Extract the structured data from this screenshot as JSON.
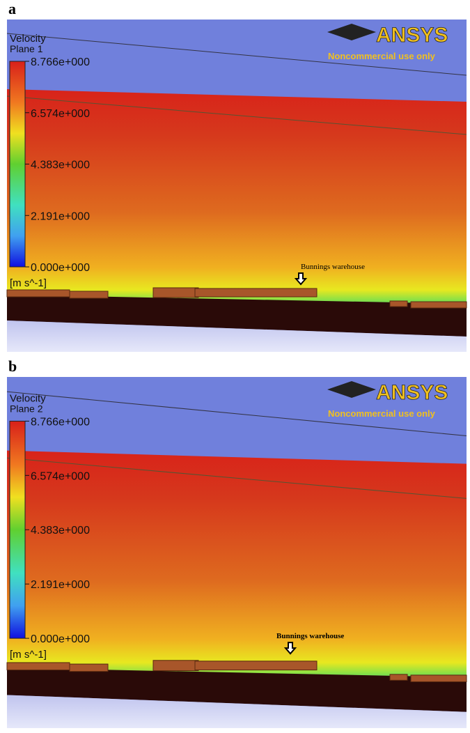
{
  "panels": [
    {
      "label": "a",
      "title": "Velocity",
      "plane": "Plane 1",
      "scale": [
        "8.766e+000",
        "6.574e+000",
        "4.383e+000",
        "2.191e+000",
        "0.000e+000"
      ],
      "unit": "[m s^-1]",
      "annotation": "Bunnings warehouse",
      "logo": "ANSYS",
      "logo_note": "Noncommercial use only"
    },
    {
      "label": "b",
      "title": "Velocity",
      "plane": "Plane 2",
      "scale": [
        "8.766e+000",
        "6.574e+000",
        "4.383e+000",
        "2.191e+000",
        "0.000e+000"
      ],
      "unit": "[m s^-1]",
      "annotation": "Bunnings warehouse",
      "logo": "ANSYS",
      "logo_note": "Noncommercial use only"
    }
  ]
}
